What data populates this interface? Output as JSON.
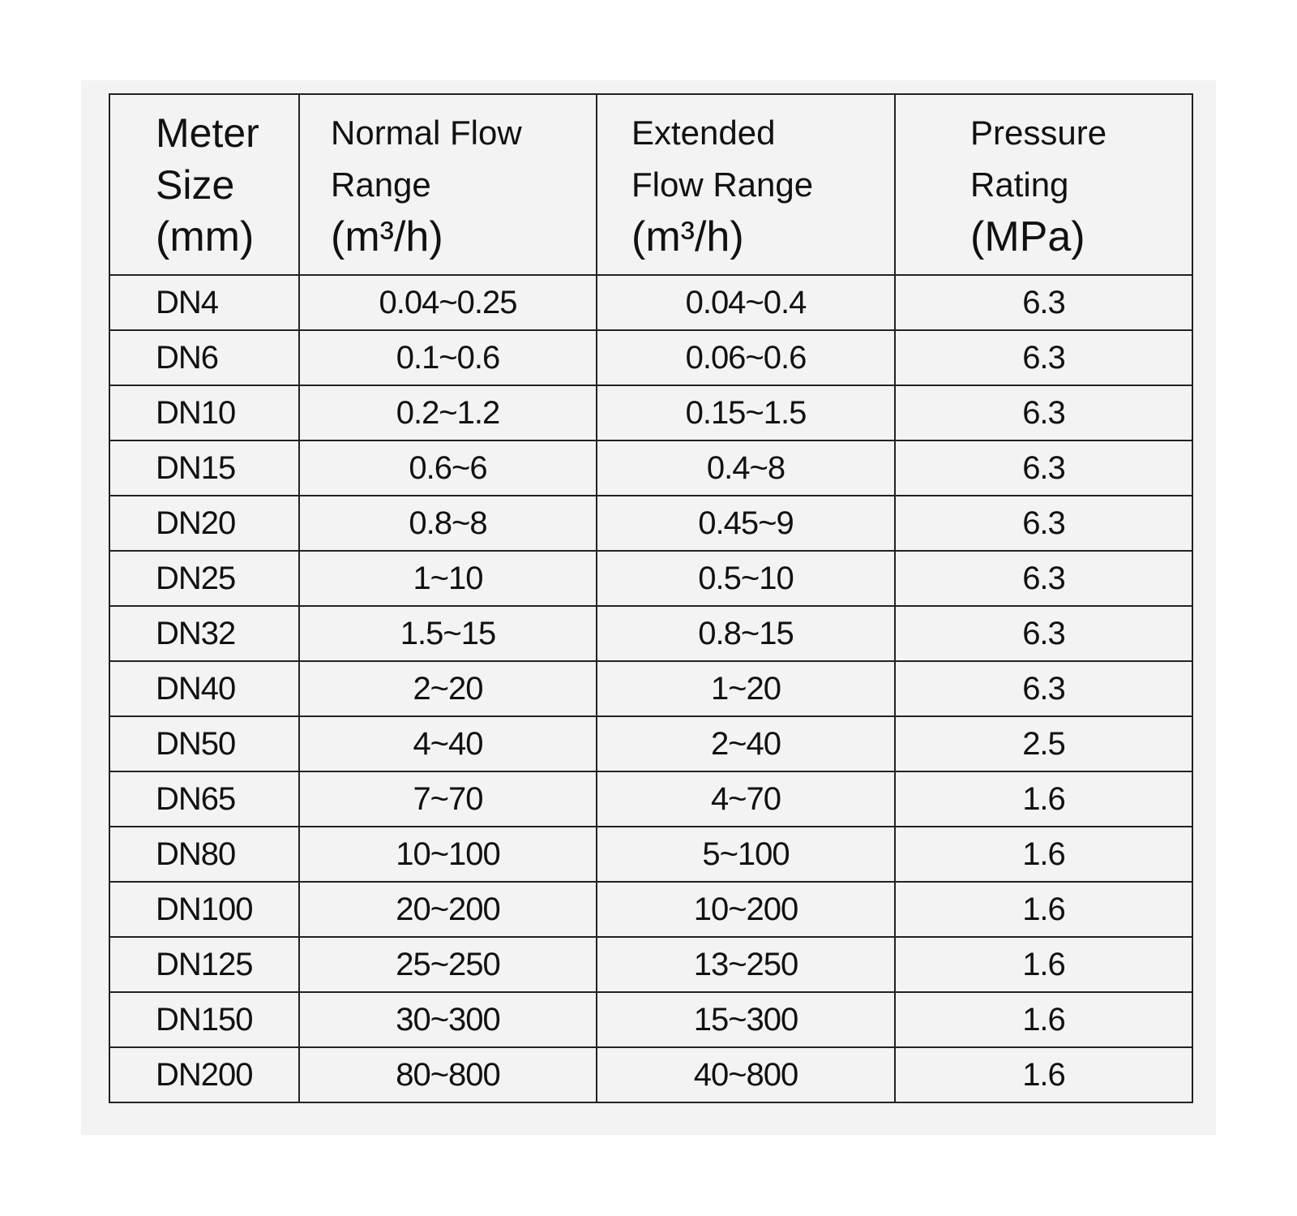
{
  "table": {
    "header": [
      [
        "Meter",
        "Size",
        "(mm)"
      ],
      [
        "Normal Flow",
        "Range",
        "(m³/h)"
      ],
      [
        "Extended",
        "Flow Range",
        "(m³/h)"
      ],
      [
        "Pressure",
        "Rating",
        "(MPa)"
      ]
    ],
    "rows": [
      [
        "DN4",
        "0.04~0.25",
        "0.04~0.4",
        "6.3"
      ],
      [
        "DN6",
        "0.1~0.6",
        "0.06~0.6",
        "6.3"
      ],
      [
        "DN10",
        "0.2~1.2",
        "0.15~1.5",
        "6.3"
      ],
      [
        "DN15",
        "0.6~6",
        "0.4~8",
        "6.3"
      ],
      [
        "DN20",
        "0.8~8",
        "0.45~9",
        "6.3"
      ],
      [
        "DN25",
        "1~10",
        "0.5~10",
        "6.3"
      ],
      [
        "DN32",
        "1.5~15",
        "0.8~15",
        "6.3"
      ],
      [
        "DN40",
        "2~20",
        "1~20",
        "6.3"
      ],
      [
        "DN50",
        "4~40",
        "2~40",
        "2.5"
      ],
      [
        "DN65",
        "7~70",
        "4~70",
        "1.6"
      ],
      [
        "DN80",
        "10~100",
        "5~100",
        "1.6"
      ],
      [
        "DN100",
        "20~200",
        "10~200",
        "1.6"
      ],
      [
        "DN125",
        "25~250",
        "13~250",
        "1.6"
      ],
      [
        "DN150",
        "30~300",
        "15~300",
        "1.6"
      ],
      [
        "DN200",
        "80~800",
        "40~800",
        "1.6"
      ]
    ]
  }
}
